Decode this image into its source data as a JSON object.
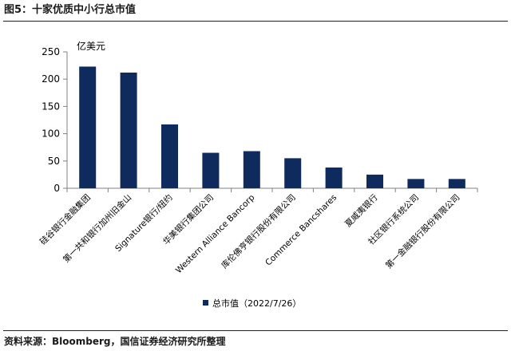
{
  "figure": {
    "title": "图5：十家优质中小行总市值",
    "source": "资料来源：Bloomberg，国信证券经济研究所整理"
  },
  "colors": {
    "bar": "#0f2a5c",
    "axis": "#808080"
  },
  "chart_data": {
    "type": "bar",
    "title": "",
    "unit_label": "亿美元",
    "xlabel": "",
    "ylabel": "",
    "ylim": [
      0,
      250
    ],
    "yticks": [
      0,
      50,
      100,
      150,
      200,
      250
    ],
    "grid": false,
    "legend_position": "bottom",
    "categories": [
      "硅谷银行金融集团",
      "第一共和银行加州旧金山",
      "Signature银行/纽约",
      "华美银行集团公司",
      "Western Alliance Bancorp",
      "库伦佛亨银行股份有限公司",
      "Commerce Bancshares",
      "夏威夷银行",
      "社区银行系统公司",
      "第一金融银行股份有限公司"
    ],
    "series": [
      {
        "name": "总市值（2022/7/26）",
        "values": [
          223,
          212,
          117,
          65,
          68,
          55,
          38,
          25,
          17,
          17
        ]
      }
    ]
  }
}
